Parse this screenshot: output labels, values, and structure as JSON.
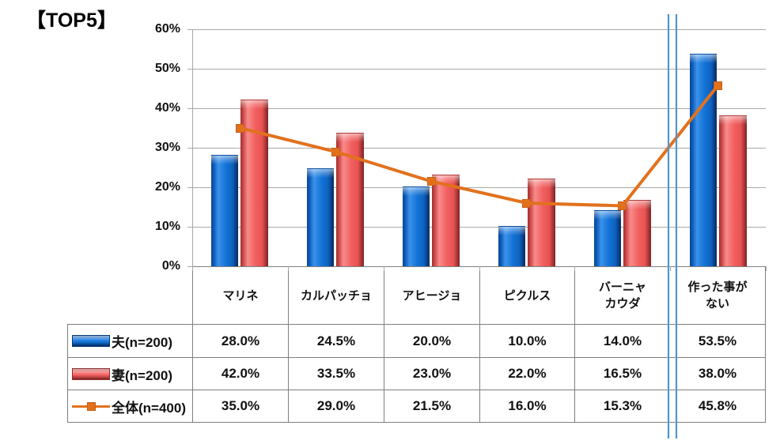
{
  "title": "【TOP5】",
  "colors": {
    "husband_bar": "#1273d6",
    "wife_bar": "#f25f5f",
    "total_line": "#e2711d",
    "gridline": "#a8a8a8",
    "table_border": "#7f7f7f",
    "axis_break_line": "#4f94cd",
    "text": "#111111"
  },
  "chart_data": {
    "type": "bar",
    "title": "【TOP5】",
    "categories": [
      "マリネ",
      "カルパッチョ",
      "アヒージョ",
      "ピクルス",
      "バーニャカウダ",
      "作った事がない"
    ],
    "categories_display": [
      [
        "マリネ"
      ],
      [
        "カルパッチョ"
      ],
      [
        "アヒージョ"
      ],
      [
        "ピクルス"
      ],
      [
        "バーニャ",
        "カウダ"
      ],
      [
        "作った事が",
        "ない"
      ]
    ],
    "series": [
      {
        "name": "夫(n=200)",
        "type": "bar",
        "values": [
          28.0,
          24.5,
          20.0,
          10.0,
          14.0,
          53.5
        ]
      },
      {
        "name": "妻(n=200)",
        "type": "bar",
        "values": [
          42.0,
          33.5,
          23.0,
          22.0,
          16.5,
          38.0
        ]
      },
      {
        "name": "全体(n=400)",
        "type": "line",
        "values": [
          35.0,
          29.0,
          21.5,
          16.0,
          15.3,
          45.8
        ]
      }
    ],
    "xlabel": "",
    "ylabel": "",
    "ylim": [
      0,
      60
    ],
    "ytick_step": 10,
    "ytick_labels": [
      "0%",
      "10%",
      "20%",
      "30%",
      "40%",
      "50%",
      "60%"
    ],
    "grid": true,
    "legend_position": "table-left",
    "axis_break_after_category_index": 4
  },
  "table": {
    "rows": [
      {
        "label": "夫(n=200)",
        "swatch": "bar-blue",
        "cells": [
          "28.0%",
          "24.5%",
          "20.0%",
          "10.0%",
          "14.0%",
          "53.5%"
        ]
      },
      {
        "label": "妻(n=200)",
        "swatch": "bar-red",
        "cells": [
          "42.0%",
          "33.5%",
          "23.0%",
          "22.0%",
          "16.5%",
          "38.0%"
        ]
      },
      {
        "label": "全体(n=400)",
        "swatch": "line-orange",
        "cells": [
          "35.0%",
          "29.0%",
          "21.5%",
          "16.0%",
          "15.3%",
          "45.8%"
        ]
      }
    ]
  }
}
